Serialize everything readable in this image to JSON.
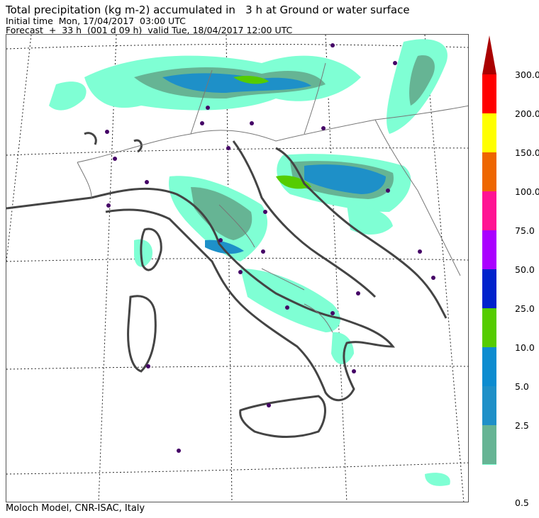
{
  "header": {
    "title": "Total precipitation (kg m-2) accumulated in   3 h at Ground or water surface",
    "initial_time": "Initial time  Mon, 17/04/2017  03:00 UTC",
    "forecast": "Forecast  +  33 h  (001 d 09 h)  valid Tue, 18/04/2017 12:00 UTC"
  },
  "footer": {
    "credit": "Moloch Model, CNR-ISAC, Italy"
  },
  "legend": {
    "levels": [
      {
        "label": "0.5",
        "color": "#7fffd4"
      },
      {
        "label": "2.5",
        "color": "#66b494"
      },
      {
        "label": "5.0",
        "color": "#1e90c8"
      },
      {
        "label": "10.0",
        "color": "#0c8cd0"
      },
      {
        "label": "25.0",
        "color": "#55cc00"
      },
      {
        "label": "50.0",
        "color": "#0022cc"
      },
      {
        "label": "75.0",
        "color": "#aa00ff"
      },
      {
        "label": "100.0",
        "color": "#ff1493"
      },
      {
        "label": "150.0",
        "color": "#ee6600"
      },
      {
        "label": "200.0",
        "color": "#ffff00"
      },
      {
        "label": "300.0",
        "color": "#ff0000"
      }
    ],
    "arrow_color": "#aa0000"
  },
  "map": {
    "coast_color": "#444444",
    "border_color": "#777777",
    "city_color": "#440066"
  }
}
